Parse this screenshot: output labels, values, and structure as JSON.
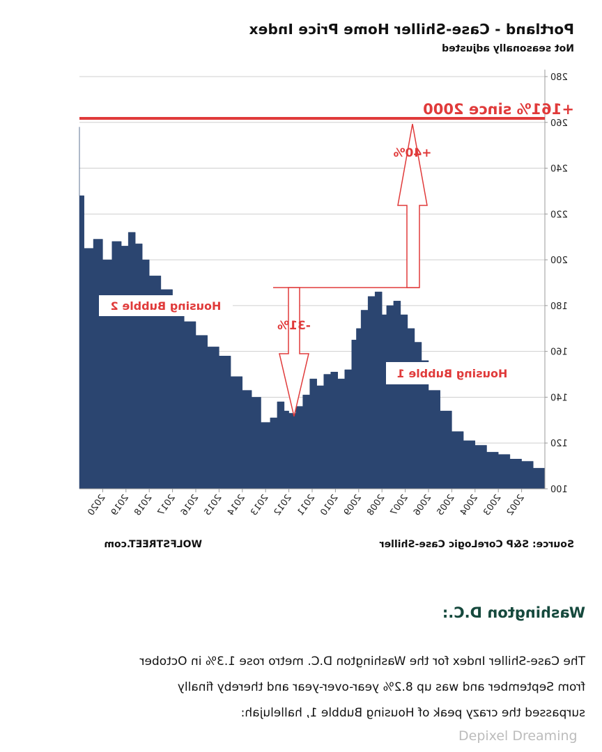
{
  "chart_data": {
    "type": "area",
    "title": "Portland - Case-Shiller Home Price Index",
    "subtitle": "Not seasonally adjusted",
    "x_tick_labels": [
      "2002",
      "2003",
      "2004",
      "2005",
      "2006",
      "2007",
      "2008",
      "2009",
      "2010",
      "2011",
      "2012",
      "2013",
      "2014",
      "2015",
      "2016",
      "2017",
      "2018",
      "2019",
      "2020"
    ],
    "ylim": [
      100,
      280
    ],
    "y_ticks": [
      100,
      120,
      140,
      160,
      180,
      200,
      220,
      240,
      260,
      280
    ],
    "grid": "horizontal",
    "series": [
      {
        "color": "#2b4570",
        "x": [
          2001.0,
          2001.5,
          2002.0,
          2002.5,
          2003.0,
          2003.5,
          2004.0,
          2004.5,
          2005.0,
          2005.5,
          2006.0,
          2006.3,
          2006.6,
          2006.9,
          2007.2,
          2007.5,
          2007.8,
          2008.0,
          2008.3,
          2008.6,
          2008.9,
          2009.1,
          2009.3,
          2009.6,
          2009.9,
          2010.2,
          2010.5,
          2010.8,
          2011.1,
          2011.4,
          2011.7,
          2012.0,
          2012.2,
          2012.5,
          2012.8,
          2013.2,
          2013.6,
          2014.0,
          2014.5,
          2015.0,
          2015.5,
          2016.0,
          2016.5,
          2017.0,
          2017.5,
          2018.0,
          2018.3,
          2018.6,
          2018.9,
          2019.2,
          2019.6,
          2020.0,
          2020.4,
          2020.8,
          2021.0
        ],
        "values": [
          109,
          112,
          113,
          115,
          116,
          119,
          121,
          125,
          134,
          143,
          156,
          164,
          170,
          176,
          182,
          180,
          176,
          186,
          184,
          178,
          170,
          165,
          152,
          148,
          151,
          150,
          145,
          148,
          141,
          136,
          133,
          134,
          138,
          131,
          129,
          140,
          143,
          149,
          158,
          162,
          167,
          173,
          178,
          187,
          193,
          200,
          207,
          212,
          206,
          208,
          200,
          209,
          205,
          228,
          258
        ]
      }
    ],
    "annotations": {
      "growth_label": "+161% since 2000",
      "drop_label": "-31%",
      "rise_label": "+40%",
      "bubble2_label": "Housing Bubble 2",
      "bubble1_label": "Housing Bubble 1"
    },
    "colors": {
      "area": "#2b4570",
      "annotation": "#e03a3a"
    }
  },
  "source_left": "WOLFSTREET.com",
  "source_right": "Source: S&P CoreLogic Case-Shiller",
  "section_heading": "Washington D.C.:",
  "paragraph_lines": [
    "The Case-Shiller Index for the Washington D.C. metro rose 1.3% in October",
    "from September and was up 8.2% year-over-year and thereby finally",
    "surpassed the crazy peak of Housing Bubble 1, hallelujah:"
  ],
  "watermark": "Depixel Dreaming"
}
